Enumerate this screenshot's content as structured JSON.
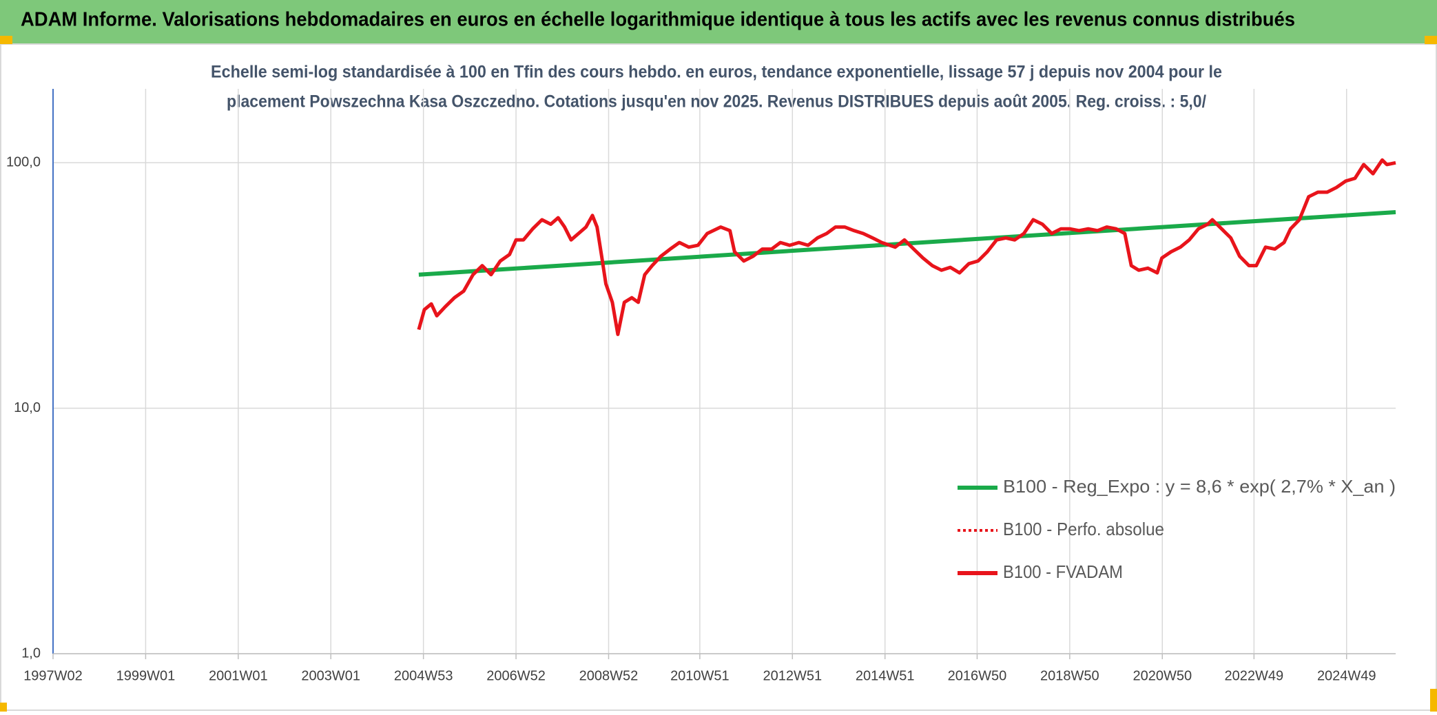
{
  "chart_data": {
    "type": "line",
    "title": "ADAM Informe. Valorisations hebdomadaires en euros en échelle logarithmique identique à tous les actifs avec les revenus connus distribués",
    "subtitle": [
      "Echelle semi-log standardisée à 100 en Tfin des cours hebdo. en euros, tendance exponentielle, lissage 57 j depuis nov 2004 pour le",
      "placement Powszechna Kasa Oszczedno. Cotations jusqu'en nov 2025. Revenus DISTRIBUES depuis août 2005. Reg. croiss. : 5,0/"
    ],
    "log_y": true,
    "grid": true,
    "xlim": [
      1997.0,
      2026.0
    ],
    "ylim": [
      1,
      200
    ],
    "xticks": [
      {
        "value": 1997.0,
        "label": "1997W02"
      },
      {
        "value": 1999.0,
        "label": "1999W01"
      },
      {
        "value": 2001.0,
        "label": "2001W01"
      },
      {
        "value": 2003.0,
        "label": "2003W01"
      },
      {
        "value": 2005.0,
        "label": "2004W53"
      },
      {
        "value": 2007.0,
        "label": "2006W52"
      },
      {
        "value": 2009.0,
        "label": "2008W52"
      },
      {
        "value": 2010.97,
        "label": "2010W51"
      },
      {
        "value": 2012.97,
        "label": "2012W51"
      },
      {
        "value": 2014.97,
        "label": "2014W51"
      },
      {
        "value": 2016.96,
        "label": "2016W50"
      },
      {
        "value": 2018.96,
        "label": "2018W50"
      },
      {
        "value": 2020.96,
        "label": "2020W50"
      },
      {
        "value": 2022.94,
        "label": "2022W49"
      },
      {
        "value": 2024.94,
        "label": "2024W49"
      }
    ],
    "yticks": [
      {
        "value": 1,
        "label": "1,0"
      },
      {
        "value": 10,
        "label": "10,0"
      },
      {
        "value": 100,
        "label": "100,0"
      }
    ],
    "series": [
      {
        "name": "B100 - Reg_Expo : y = 8,6 * exp( 2,7% *  X_an )",
        "color": "#1aaa4a",
        "style": "solid",
        "x": [
          2004.9,
          2026.0
        ],
        "values": [
          35.0,
          62.9
        ]
      },
      {
        "name": "B100 - Perfo. absolue",
        "color": "#e8141b",
        "style": "dotted",
        "x": [],
        "values": []
      },
      {
        "name": "B100 - FVADAM",
        "color": "#e8141b",
        "style": "solid",
        "x": [
          2004.9,
          2005.02,
          2005.17,
          2005.29,
          2005.47,
          2005.67,
          2005.87,
          2006.07,
          2006.27,
          2006.46,
          2006.66,
          2006.86,
          2007.0,
          2007.16,
          2007.36,
          2007.56,
          2007.75,
          2007.91,
          2008.05,
          2008.19,
          2008.35,
          2008.51,
          2008.65,
          2008.75,
          2008.85,
          2008.94,
          2009.08,
          2009.2,
          2009.34,
          2009.5,
          2009.64,
          2009.78,
          2009.94,
          2010.13,
          2010.33,
          2010.53,
          2010.73,
          2010.93,
          2011.13,
          2011.42,
          2011.62,
          2011.72,
          2011.92,
          2012.12,
          2012.32,
          2012.52,
          2012.71,
          2012.91,
          2013.11,
          2013.31,
          2013.51,
          2013.71,
          2013.9,
          2014.1,
          2014.3,
          2014.5,
          2014.7,
          2014.9,
          2015.19,
          2015.39,
          2015.59,
          2015.79,
          2015.99,
          2016.19,
          2016.38,
          2016.58,
          2016.78,
          2016.98,
          2017.18,
          2017.38,
          2017.58,
          2017.77,
          2017.97,
          2018.17,
          2018.37,
          2018.57,
          2018.77,
          2018.96,
          2019.16,
          2019.36,
          2019.56,
          2019.76,
          2019.96,
          2020.15,
          2020.29,
          2020.45,
          2020.65,
          2020.85,
          2020.95,
          2021.15,
          2021.35,
          2021.54,
          2021.74,
          2021.94,
          2022.04,
          2022.24,
          2022.44,
          2022.63,
          2022.83,
          2022.99,
          2023.19,
          2023.39,
          2023.59,
          2023.73,
          2023.92,
          2024.12,
          2024.32,
          2024.52,
          2024.72,
          2024.92,
          2025.12,
          2025.31,
          2025.51,
          2025.71,
          2025.81,
          2026.0
        ],
        "values": [
          20.9,
          25.2,
          26.6,
          23.8,
          25.9,
          28.2,
          30.0,
          35.0,
          38.1,
          35.0,
          39.8,
          42.3,
          48.5,
          48.5,
          53.8,
          58.6,
          56.2,
          59.7,
          54.7,
          48.5,
          51.5,
          54.7,
          61.0,
          54.7,
          41.6,
          32.1,
          27.0,
          20.0,
          27.0,
          28.2,
          27.0,
          35.0,
          38.1,
          41.6,
          44.5,
          47.3,
          45.3,
          46.1,
          51.5,
          54.7,
          52.9,
          43.4,
          39.8,
          41.6,
          44.5,
          44.5,
          47.3,
          46.1,
          47.3,
          46.1,
          49.4,
          51.5,
          54.7,
          54.7,
          52.9,
          51.5,
          49.4,
          47.3,
          45.3,
          48.5,
          44.5,
          40.9,
          38.1,
          36.5,
          37.5,
          35.6,
          38.8,
          39.8,
          43.4,
          48.5,
          49.4,
          48.5,
          51.5,
          58.6,
          56.2,
          51.5,
          53.8,
          53.8,
          52.9,
          53.8,
          52.9,
          54.7,
          53.8,
          51.5,
          38.1,
          36.5,
          37.2,
          35.6,
          40.9,
          43.4,
          45.3,
          48.5,
          53.8,
          56.2,
          58.6,
          53.8,
          49.4,
          41.6,
          38.1,
          38.1,
          45.3,
          44.5,
          47.3,
          53.8,
          58.6,
          72.7,
          75.9,
          75.9,
          79.3,
          84.2,
          86.4,
          98.3,
          90.2,
          102.6,
          98.3,
          100.0
        ]
      }
    ],
    "legend_position": "lower right"
  }
}
